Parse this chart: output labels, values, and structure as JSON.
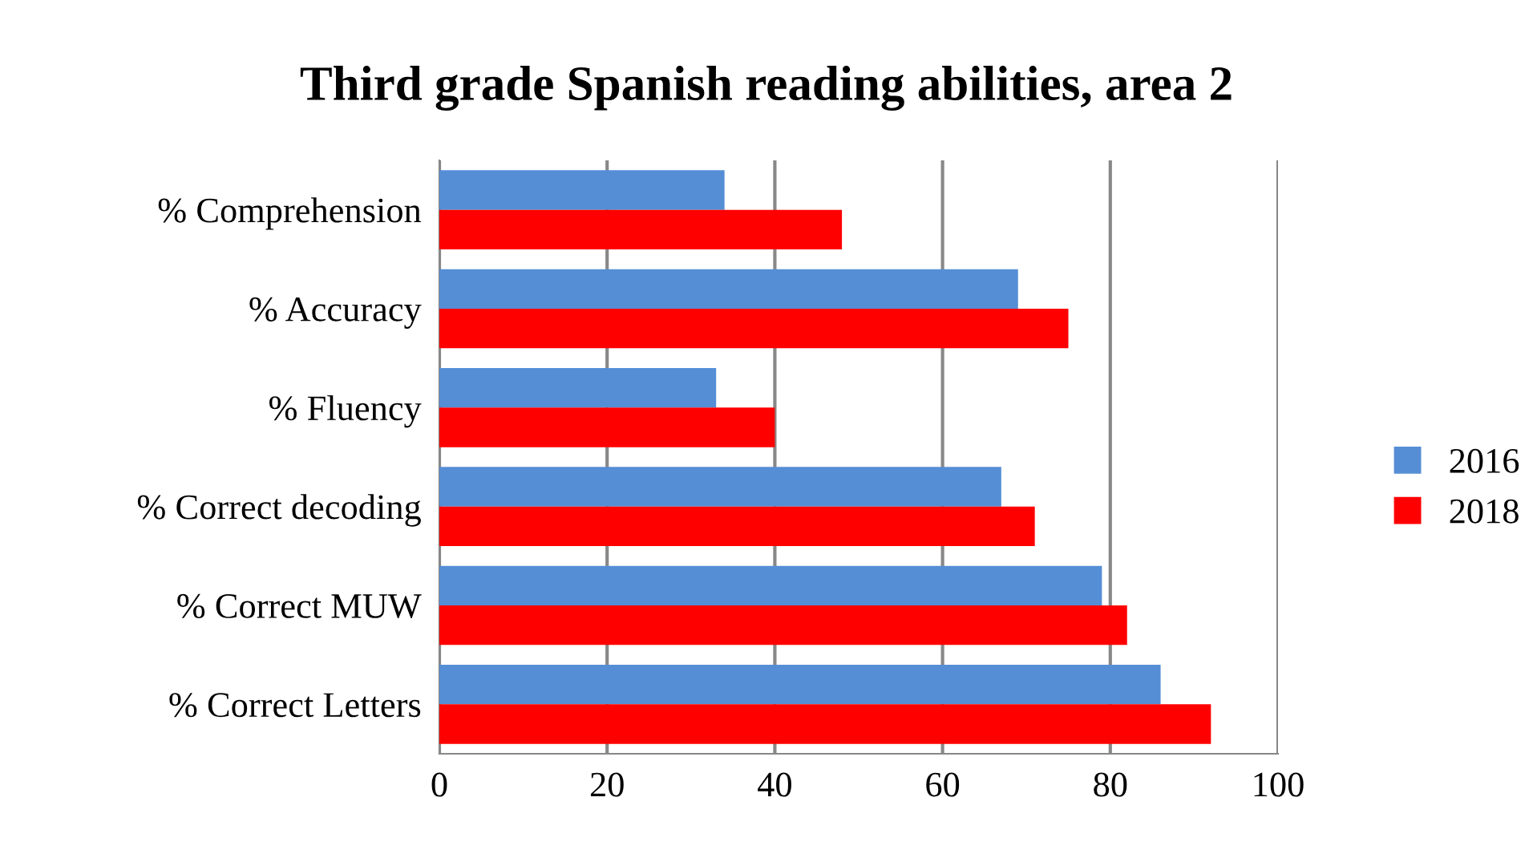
{
  "chart_data": {
    "type": "bar",
    "orientation": "horizontal",
    "title": "Third grade Spanish reading abilities, area 2",
    "categories": [
      "% Comprehension",
      "% Accuracy",
      "% Fluency",
      "% Correct decoding",
      "% Correct MUW",
      "% Correct Letters"
    ],
    "series": [
      {
        "name": "2016",
        "color": "#558ed5",
        "values": [
          34,
          69,
          33,
          67,
          79,
          86
        ]
      },
      {
        "name": "2018",
        "color": "#ff0000",
        "values": [
          48,
          75,
          40,
          71,
          82,
          92
        ]
      }
    ],
    "xlim": [
      0,
      100
    ],
    "xticks": [
      0,
      20,
      40,
      60,
      80,
      100
    ],
    "grid": "x",
    "legend": "right"
  }
}
